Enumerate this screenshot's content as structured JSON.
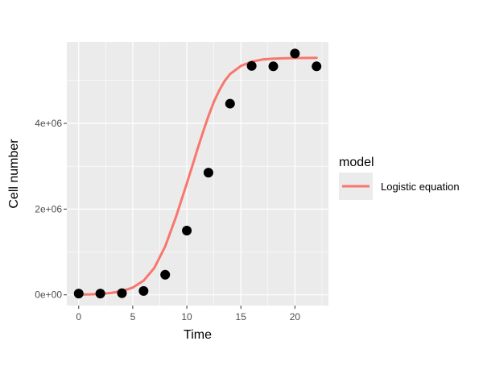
{
  "chart_data": {
    "type": "scatter",
    "xlabel": "Time",
    "ylabel": "Cell number",
    "xlim": [
      -1.1,
      23.1
    ],
    "ylim": [
      -250000,
      5900000
    ],
    "x_ticks": [
      0,
      5,
      10,
      15,
      20
    ],
    "x_tick_labels": [
      "0",
      "5",
      "10",
      "15",
      "20"
    ],
    "y_ticks": [
      0,
      2000000,
      4000000
    ],
    "y_tick_labels": [
      "0e+00",
      "2e+06",
      "4e+06"
    ],
    "grid": true,
    "legend_position": "right",
    "legend_title": "model",
    "points": [
      {
        "x": 0,
        "y": 30000
      },
      {
        "x": 2,
        "y": 30000
      },
      {
        "x": 4,
        "y": 40000
      },
      {
        "x": 6,
        "y": 90000
      },
      {
        "x": 8,
        "y": 470000
      },
      {
        "x": 10,
        "y": 1500000
      },
      {
        "x": 12,
        "y": 2850000
      },
      {
        "x": 14,
        "y": 4460000
      },
      {
        "x": 16,
        "y": 5340000
      },
      {
        "x": 18,
        "y": 5330000
      },
      {
        "x": 20,
        "y": 5630000
      },
      {
        "x": 22,
        "y": 5330000
      }
    ],
    "series": [
      {
        "name": "Logistic equation",
        "color": "#F8766D",
        "x": [
          0,
          1,
          2,
          3,
          4,
          5,
          6,
          7,
          8,
          9,
          10,
          10.5,
          11,
          11.5,
          12,
          12.5,
          13,
          13.5,
          14,
          15,
          16,
          17,
          18,
          19,
          20,
          21,
          22
        ],
        "y": [
          5500,
          11000,
          22000,
          44000,
          88000,
          170000,
          330000,
          630000,
          1130000,
          1820000,
          2600000,
          3000000,
          3410000,
          3800000,
          4170000,
          4500000,
          4770000,
          4990000,
          5150000,
          5340000,
          5440000,
          5490000,
          5510000,
          5520000,
          5525000,
          5527000,
          5528000
        ]
      }
    ]
  }
}
